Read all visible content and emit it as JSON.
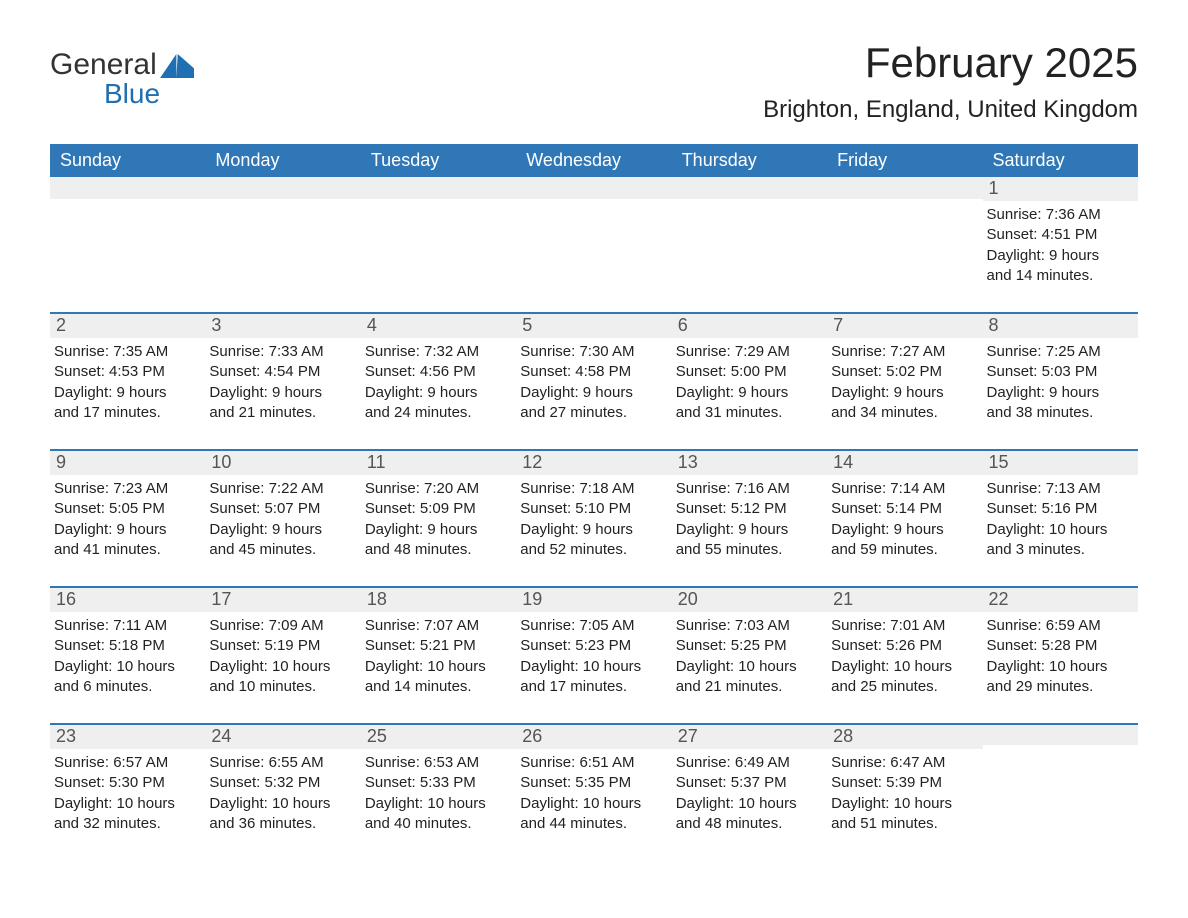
{
  "logo": {
    "text1": "General",
    "text2": "Blue"
  },
  "title": "February 2025",
  "location": "Brighton, England, United Kingdom",
  "colors": {
    "header_bg": "#2f77b7",
    "header_text": "#ffffff",
    "daynum_bg": "#efefef",
    "daynum_border": "#2f77b7",
    "daynum_text": "#555555",
    "body_text": "#222222",
    "logo_blue": "#1f6fb2",
    "background": "#ffffff"
  },
  "typography": {
    "title_fontsize": 42,
    "location_fontsize": 24,
    "dayheader_fontsize": 18,
    "daynum_fontsize": 18,
    "body_fontsize": 15,
    "font_family": "Segoe UI"
  },
  "day_headers": [
    "Sunday",
    "Monday",
    "Tuesday",
    "Wednesday",
    "Thursday",
    "Friday",
    "Saturday"
  ],
  "weeks": [
    [
      {
        "num": "",
        "sunrise": "",
        "sunset": "",
        "daylight1": "",
        "daylight2": ""
      },
      {
        "num": "",
        "sunrise": "",
        "sunset": "",
        "daylight1": "",
        "daylight2": ""
      },
      {
        "num": "",
        "sunrise": "",
        "sunset": "",
        "daylight1": "",
        "daylight2": ""
      },
      {
        "num": "",
        "sunrise": "",
        "sunset": "",
        "daylight1": "",
        "daylight2": ""
      },
      {
        "num": "",
        "sunrise": "",
        "sunset": "",
        "daylight1": "",
        "daylight2": ""
      },
      {
        "num": "",
        "sunrise": "",
        "sunset": "",
        "daylight1": "",
        "daylight2": ""
      },
      {
        "num": "1",
        "sunrise": "Sunrise: 7:36 AM",
        "sunset": "Sunset: 4:51 PM",
        "daylight1": "Daylight: 9 hours",
        "daylight2": "and 14 minutes."
      }
    ],
    [
      {
        "num": "2",
        "sunrise": "Sunrise: 7:35 AM",
        "sunset": "Sunset: 4:53 PM",
        "daylight1": "Daylight: 9 hours",
        "daylight2": "and 17 minutes."
      },
      {
        "num": "3",
        "sunrise": "Sunrise: 7:33 AM",
        "sunset": "Sunset: 4:54 PM",
        "daylight1": "Daylight: 9 hours",
        "daylight2": "and 21 minutes."
      },
      {
        "num": "4",
        "sunrise": "Sunrise: 7:32 AM",
        "sunset": "Sunset: 4:56 PM",
        "daylight1": "Daylight: 9 hours",
        "daylight2": "and 24 minutes."
      },
      {
        "num": "5",
        "sunrise": "Sunrise: 7:30 AM",
        "sunset": "Sunset: 4:58 PM",
        "daylight1": "Daylight: 9 hours",
        "daylight2": "and 27 minutes."
      },
      {
        "num": "6",
        "sunrise": "Sunrise: 7:29 AM",
        "sunset": "Sunset: 5:00 PM",
        "daylight1": "Daylight: 9 hours",
        "daylight2": "and 31 minutes."
      },
      {
        "num": "7",
        "sunrise": "Sunrise: 7:27 AM",
        "sunset": "Sunset: 5:02 PM",
        "daylight1": "Daylight: 9 hours",
        "daylight2": "and 34 minutes."
      },
      {
        "num": "8",
        "sunrise": "Sunrise: 7:25 AM",
        "sunset": "Sunset: 5:03 PM",
        "daylight1": "Daylight: 9 hours",
        "daylight2": "and 38 minutes."
      }
    ],
    [
      {
        "num": "9",
        "sunrise": "Sunrise: 7:23 AM",
        "sunset": "Sunset: 5:05 PM",
        "daylight1": "Daylight: 9 hours",
        "daylight2": "and 41 minutes."
      },
      {
        "num": "10",
        "sunrise": "Sunrise: 7:22 AM",
        "sunset": "Sunset: 5:07 PM",
        "daylight1": "Daylight: 9 hours",
        "daylight2": "and 45 minutes."
      },
      {
        "num": "11",
        "sunrise": "Sunrise: 7:20 AM",
        "sunset": "Sunset: 5:09 PM",
        "daylight1": "Daylight: 9 hours",
        "daylight2": "and 48 minutes."
      },
      {
        "num": "12",
        "sunrise": "Sunrise: 7:18 AM",
        "sunset": "Sunset: 5:10 PM",
        "daylight1": "Daylight: 9 hours",
        "daylight2": "and 52 minutes."
      },
      {
        "num": "13",
        "sunrise": "Sunrise: 7:16 AM",
        "sunset": "Sunset: 5:12 PM",
        "daylight1": "Daylight: 9 hours",
        "daylight2": "and 55 minutes."
      },
      {
        "num": "14",
        "sunrise": "Sunrise: 7:14 AM",
        "sunset": "Sunset: 5:14 PM",
        "daylight1": "Daylight: 9 hours",
        "daylight2": "and 59 minutes."
      },
      {
        "num": "15",
        "sunrise": "Sunrise: 7:13 AM",
        "sunset": "Sunset: 5:16 PM",
        "daylight1": "Daylight: 10 hours",
        "daylight2": "and 3 minutes."
      }
    ],
    [
      {
        "num": "16",
        "sunrise": "Sunrise: 7:11 AM",
        "sunset": "Sunset: 5:18 PM",
        "daylight1": "Daylight: 10 hours",
        "daylight2": "and 6 minutes."
      },
      {
        "num": "17",
        "sunrise": "Sunrise: 7:09 AM",
        "sunset": "Sunset: 5:19 PM",
        "daylight1": "Daylight: 10 hours",
        "daylight2": "and 10 minutes."
      },
      {
        "num": "18",
        "sunrise": "Sunrise: 7:07 AM",
        "sunset": "Sunset: 5:21 PM",
        "daylight1": "Daylight: 10 hours",
        "daylight2": "and 14 minutes."
      },
      {
        "num": "19",
        "sunrise": "Sunrise: 7:05 AM",
        "sunset": "Sunset: 5:23 PM",
        "daylight1": "Daylight: 10 hours",
        "daylight2": "and 17 minutes."
      },
      {
        "num": "20",
        "sunrise": "Sunrise: 7:03 AM",
        "sunset": "Sunset: 5:25 PM",
        "daylight1": "Daylight: 10 hours",
        "daylight2": "and 21 minutes."
      },
      {
        "num": "21",
        "sunrise": "Sunrise: 7:01 AM",
        "sunset": "Sunset: 5:26 PM",
        "daylight1": "Daylight: 10 hours",
        "daylight2": "and 25 minutes."
      },
      {
        "num": "22",
        "sunrise": "Sunrise: 6:59 AM",
        "sunset": "Sunset: 5:28 PM",
        "daylight1": "Daylight: 10 hours",
        "daylight2": "and 29 minutes."
      }
    ],
    [
      {
        "num": "23",
        "sunrise": "Sunrise: 6:57 AM",
        "sunset": "Sunset: 5:30 PM",
        "daylight1": "Daylight: 10 hours",
        "daylight2": "and 32 minutes."
      },
      {
        "num": "24",
        "sunrise": "Sunrise: 6:55 AM",
        "sunset": "Sunset: 5:32 PM",
        "daylight1": "Daylight: 10 hours",
        "daylight2": "and 36 minutes."
      },
      {
        "num": "25",
        "sunrise": "Sunrise: 6:53 AM",
        "sunset": "Sunset: 5:33 PM",
        "daylight1": "Daylight: 10 hours",
        "daylight2": "and 40 minutes."
      },
      {
        "num": "26",
        "sunrise": "Sunrise: 6:51 AM",
        "sunset": "Sunset: 5:35 PM",
        "daylight1": "Daylight: 10 hours",
        "daylight2": "and 44 minutes."
      },
      {
        "num": "27",
        "sunrise": "Sunrise: 6:49 AM",
        "sunset": "Sunset: 5:37 PM",
        "daylight1": "Daylight: 10 hours",
        "daylight2": "and 48 minutes."
      },
      {
        "num": "28",
        "sunrise": "Sunrise: 6:47 AM",
        "sunset": "Sunset: 5:39 PM",
        "daylight1": "Daylight: 10 hours",
        "daylight2": "and 51 minutes."
      },
      {
        "num": "",
        "sunrise": "",
        "sunset": "",
        "daylight1": "",
        "daylight2": ""
      }
    ]
  ]
}
